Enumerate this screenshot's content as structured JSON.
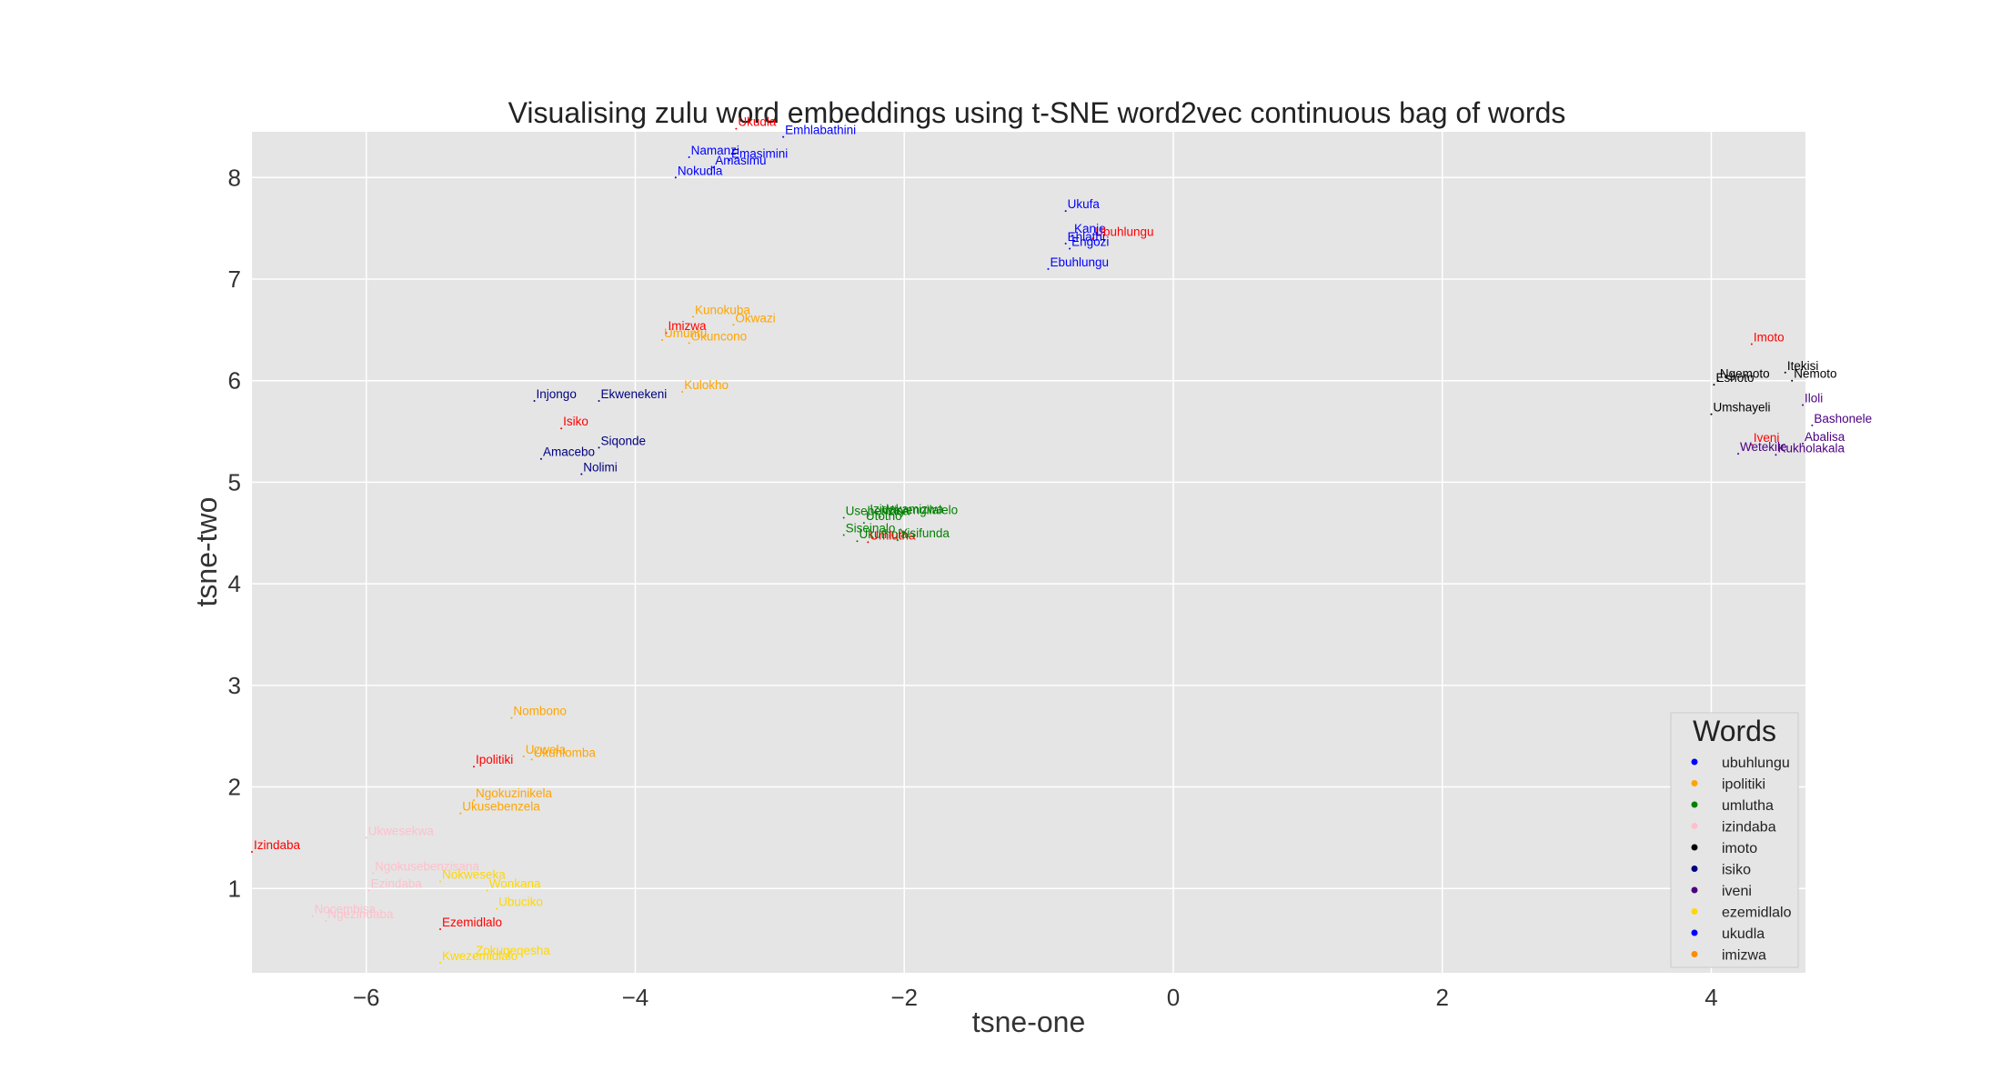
{
  "chart_data": {
    "type": "scatter",
    "title": "Visualising zulu word embeddings using t-SNE word2vec continuous bag of words",
    "xlabel": "tsne-one",
    "ylabel": "tsne-two",
    "xlim": [
      -6.85,
      4.7
    ],
    "ylim": [
      0.17,
      8.45
    ],
    "xticks": [
      -6,
      -4,
      -2,
      0,
      2,
      4
    ],
    "yticks": [
      1,
      2,
      3,
      4,
      5,
      6,
      7,
      8
    ],
    "xtick_labels": [
      "−6",
      "−4",
      "−2",
      "0",
      "2",
      "4"
    ],
    "ytick_labels": [
      "1",
      "2",
      "3",
      "4",
      "5",
      "6",
      "7",
      "8"
    ],
    "grid": true,
    "legend": {
      "title": "Words",
      "placement": "bottom-right",
      "entries": [
        {
          "name": "ubuhlungu",
          "color": "#0000ff"
        },
        {
          "name": "ipolitiki",
          "color": "#ffa500"
        },
        {
          "name": "umlutha",
          "color": "#008000"
        },
        {
          "name": "izindaba",
          "color": "#ffc0cb"
        },
        {
          "name": "imoto",
          "color": "#000000"
        },
        {
          "name": "isiko",
          "color": "#000080"
        },
        {
          "name": "iveni",
          "color": "#4b0082"
        },
        {
          "name": "ezemidlalo",
          "color": "#ffd700"
        },
        {
          "name": "ukudla",
          "color": "#0000ff"
        },
        {
          "name": "imizwa",
          "color": "#ff8c00"
        }
      ]
    },
    "points": [
      {
        "label": "Ukudla",
        "x": -3.25,
        "y": 8.48,
        "color": "#ff0000"
      },
      {
        "label": "Emhlabathini",
        "x": -2.9,
        "y": 8.4,
        "color": "#0000ff"
      },
      {
        "label": "Namanzi",
        "x": -3.6,
        "y": 8.2,
        "color": "#0000ff"
      },
      {
        "label": "Emasimini",
        "x": -3.3,
        "y": 8.17,
        "color": "#0000ff"
      },
      {
        "label": "Amasimu",
        "x": -3.42,
        "y": 8.1,
        "color": "#0000ff"
      },
      {
        "label": "Nokudla",
        "x": -3.7,
        "y": 8.0,
        "color": "#0000ff"
      },
      {
        "label": "Ukufa",
        "x": -0.8,
        "y": 7.67,
        "color": "#0000ff"
      },
      {
        "label": "Kanje",
        "x": -0.75,
        "y": 7.43,
        "color": "#0000ff"
      },
      {
        "label": "Ubuhlungu",
        "x": -0.6,
        "y": 7.4,
        "color": "#ff0000"
      },
      {
        "label": "Ehlathi",
        "x": -0.8,
        "y": 7.35,
        "color": "#0000ff"
      },
      {
        "label": "Engozi",
        "x": -0.77,
        "y": 7.3,
        "color": "#0000ff"
      },
      {
        "label": "Ebuhlungu",
        "x": -0.93,
        "y": 7.1,
        "color": "#0000ff"
      },
      {
        "label": "Kunokuba",
        "x": -3.57,
        "y": 6.63,
        "color": "#ffa500"
      },
      {
        "label": "Okwazi",
        "x": -3.27,
        "y": 6.55,
        "color": "#ffa500"
      },
      {
        "label": "Imizwa",
        "x": -3.77,
        "y": 6.47,
        "color": "#ff0000"
      },
      {
        "label": "Umuntu",
        "x": -3.8,
        "y": 6.4,
        "color": "#ffa500"
      },
      {
        "label": "Okuncono",
        "x": -3.6,
        "y": 6.37,
        "color": "#ffa500"
      },
      {
        "label": "Kulokho",
        "x": -3.65,
        "y": 5.89,
        "color": "#ffa500"
      },
      {
        "label": "Injongo",
        "x": -4.75,
        "y": 5.8,
        "color": "#000080"
      },
      {
        "label": "Ekwenekeni",
        "x": -4.27,
        "y": 5.8,
        "color": "#000080"
      },
      {
        "label": "Isiko",
        "x": -4.55,
        "y": 5.53,
        "color": "#ff0000"
      },
      {
        "label": "Siqonde",
        "x": -4.27,
        "y": 5.34,
        "color": "#000080"
      },
      {
        "label": "Amacebo",
        "x": -4.7,
        "y": 5.23,
        "color": "#000080"
      },
      {
        "label": "Nolimi",
        "x": -4.4,
        "y": 5.08,
        "color": "#000080"
      },
      {
        "label": "Usebenzisa",
        "x": -2.45,
        "y": 4.65,
        "color": "#008000"
      },
      {
        "label": "Izidakamizwa",
        "x": -2.27,
        "y": 4.67,
        "color": "#008000"
      },
      {
        "label": "Wayengilalelo",
        "x": -2.18,
        "y": 4.66,
        "color": "#008000"
      },
      {
        "label": "Utotho",
        "x": -2.3,
        "y": 4.6,
        "color": "#008000"
      },
      {
        "label": "Siseinalo",
        "x": -2.45,
        "y": 4.48,
        "color": "#008000"
      },
      {
        "label": "Ukuthola",
        "x": -2.35,
        "y": 4.42,
        "color": "#008000"
      },
      {
        "label": "Umlutha",
        "x": -2.27,
        "y": 4.41,
        "color": "#ff0000"
      },
      {
        "label": "Yisifunda",
        "x": -2.05,
        "y": 4.43,
        "color": "#008000"
      },
      {
        "label": "Imoto",
        "x": 4.3,
        "y": 6.36,
        "color": "#ff0000"
      },
      {
        "label": "Itekisi",
        "x": 4.55,
        "y": 6.08,
        "color": "#000000"
      },
      {
        "label": "Ngemoto",
        "x": 4.05,
        "y": 6.0,
        "color": "#000000"
      },
      {
        "label": "Nemoto",
        "x": 4.6,
        "y": 6.0,
        "color": "#000000"
      },
      {
        "label": "Eshoto",
        "x": 4.02,
        "y": 5.96,
        "color": "#000000"
      },
      {
        "label": "Iloli",
        "x": 4.68,
        "y": 5.76,
        "color": "#4b0082"
      },
      {
        "label": "Umshayeli",
        "x": 4.0,
        "y": 5.67,
        "color": "#000000"
      },
      {
        "label": "Bashonele",
        "x": 4.75,
        "y": 5.56,
        "color": "#4b0082"
      },
      {
        "label": "Iveni",
        "x": 4.3,
        "y": 5.37,
        "color": "#ff0000"
      },
      {
        "label": "Abalisa",
        "x": 4.68,
        "y": 5.38,
        "color": "#4b0082"
      },
      {
        "label": "Wetekile",
        "x": 4.2,
        "y": 5.28,
        "color": "#4b0082"
      },
      {
        "label": "Kukholakala",
        "x": 4.48,
        "y": 5.27,
        "color": "#4b0082"
      },
      {
        "label": "Nombono",
        "x": -4.92,
        "y": 2.68,
        "color": "#ffa500"
      },
      {
        "label": "Uzwela",
        "x": -4.83,
        "y": 2.3,
        "color": "#ffa500"
      },
      {
        "label": "Ukuhlomba",
        "x": -4.77,
        "y": 2.27,
        "color": "#ffa500"
      },
      {
        "label": "Ipolitiki",
        "x": -5.2,
        "y": 2.2,
        "color": "#ff0000"
      },
      {
        "label": "Ngokuzinikela",
        "x": -5.2,
        "y": 1.87,
        "color": "#ffa500"
      },
      {
        "label": "Ukusebenzela",
        "x": -5.3,
        "y": 1.74,
        "color": "#ffa500"
      },
      {
        "label": "Ukwesekwa",
        "x": -6.0,
        "y": 1.5,
        "color": "#ffc0cb"
      },
      {
        "label": "Izindaba",
        "x": -6.85,
        "y": 1.36,
        "color": "#ff0000"
      },
      {
        "label": "Ngokusebenzisana",
        "x": -5.95,
        "y": 1.15,
        "color": "#ffc0cb"
      },
      {
        "label": "Nokweseka",
        "x": -5.45,
        "y": 1.07,
        "color": "#ffd700"
      },
      {
        "label": "Ezindaba",
        "x": -5.98,
        "y": 0.98,
        "color": "#ffc0cb"
      },
      {
        "label": "Wonkana",
        "x": -5.1,
        "y": 0.98,
        "color": "#ffd700"
      },
      {
        "label": "Ubuciko",
        "x": -5.03,
        "y": 0.8,
        "color": "#ffd700"
      },
      {
        "label": "Nocembisa",
        "x": -6.4,
        "y": 0.73,
        "color": "#ffc0cb"
      },
      {
        "label": "Ngezindaba",
        "x": -6.3,
        "y": 0.68,
        "color": "#ffc0cb"
      },
      {
        "label": "Ezemidlalo",
        "x": -5.45,
        "y": 0.6,
        "color": "#ff0000"
      },
      {
        "label": "Zokuqeqesha",
        "x": -5.2,
        "y": 0.32,
        "color": "#ffd700"
      },
      {
        "label": "Kwezemidlalo",
        "x": -5.45,
        "y": 0.27,
        "color": "#ffd700"
      }
    ]
  }
}
